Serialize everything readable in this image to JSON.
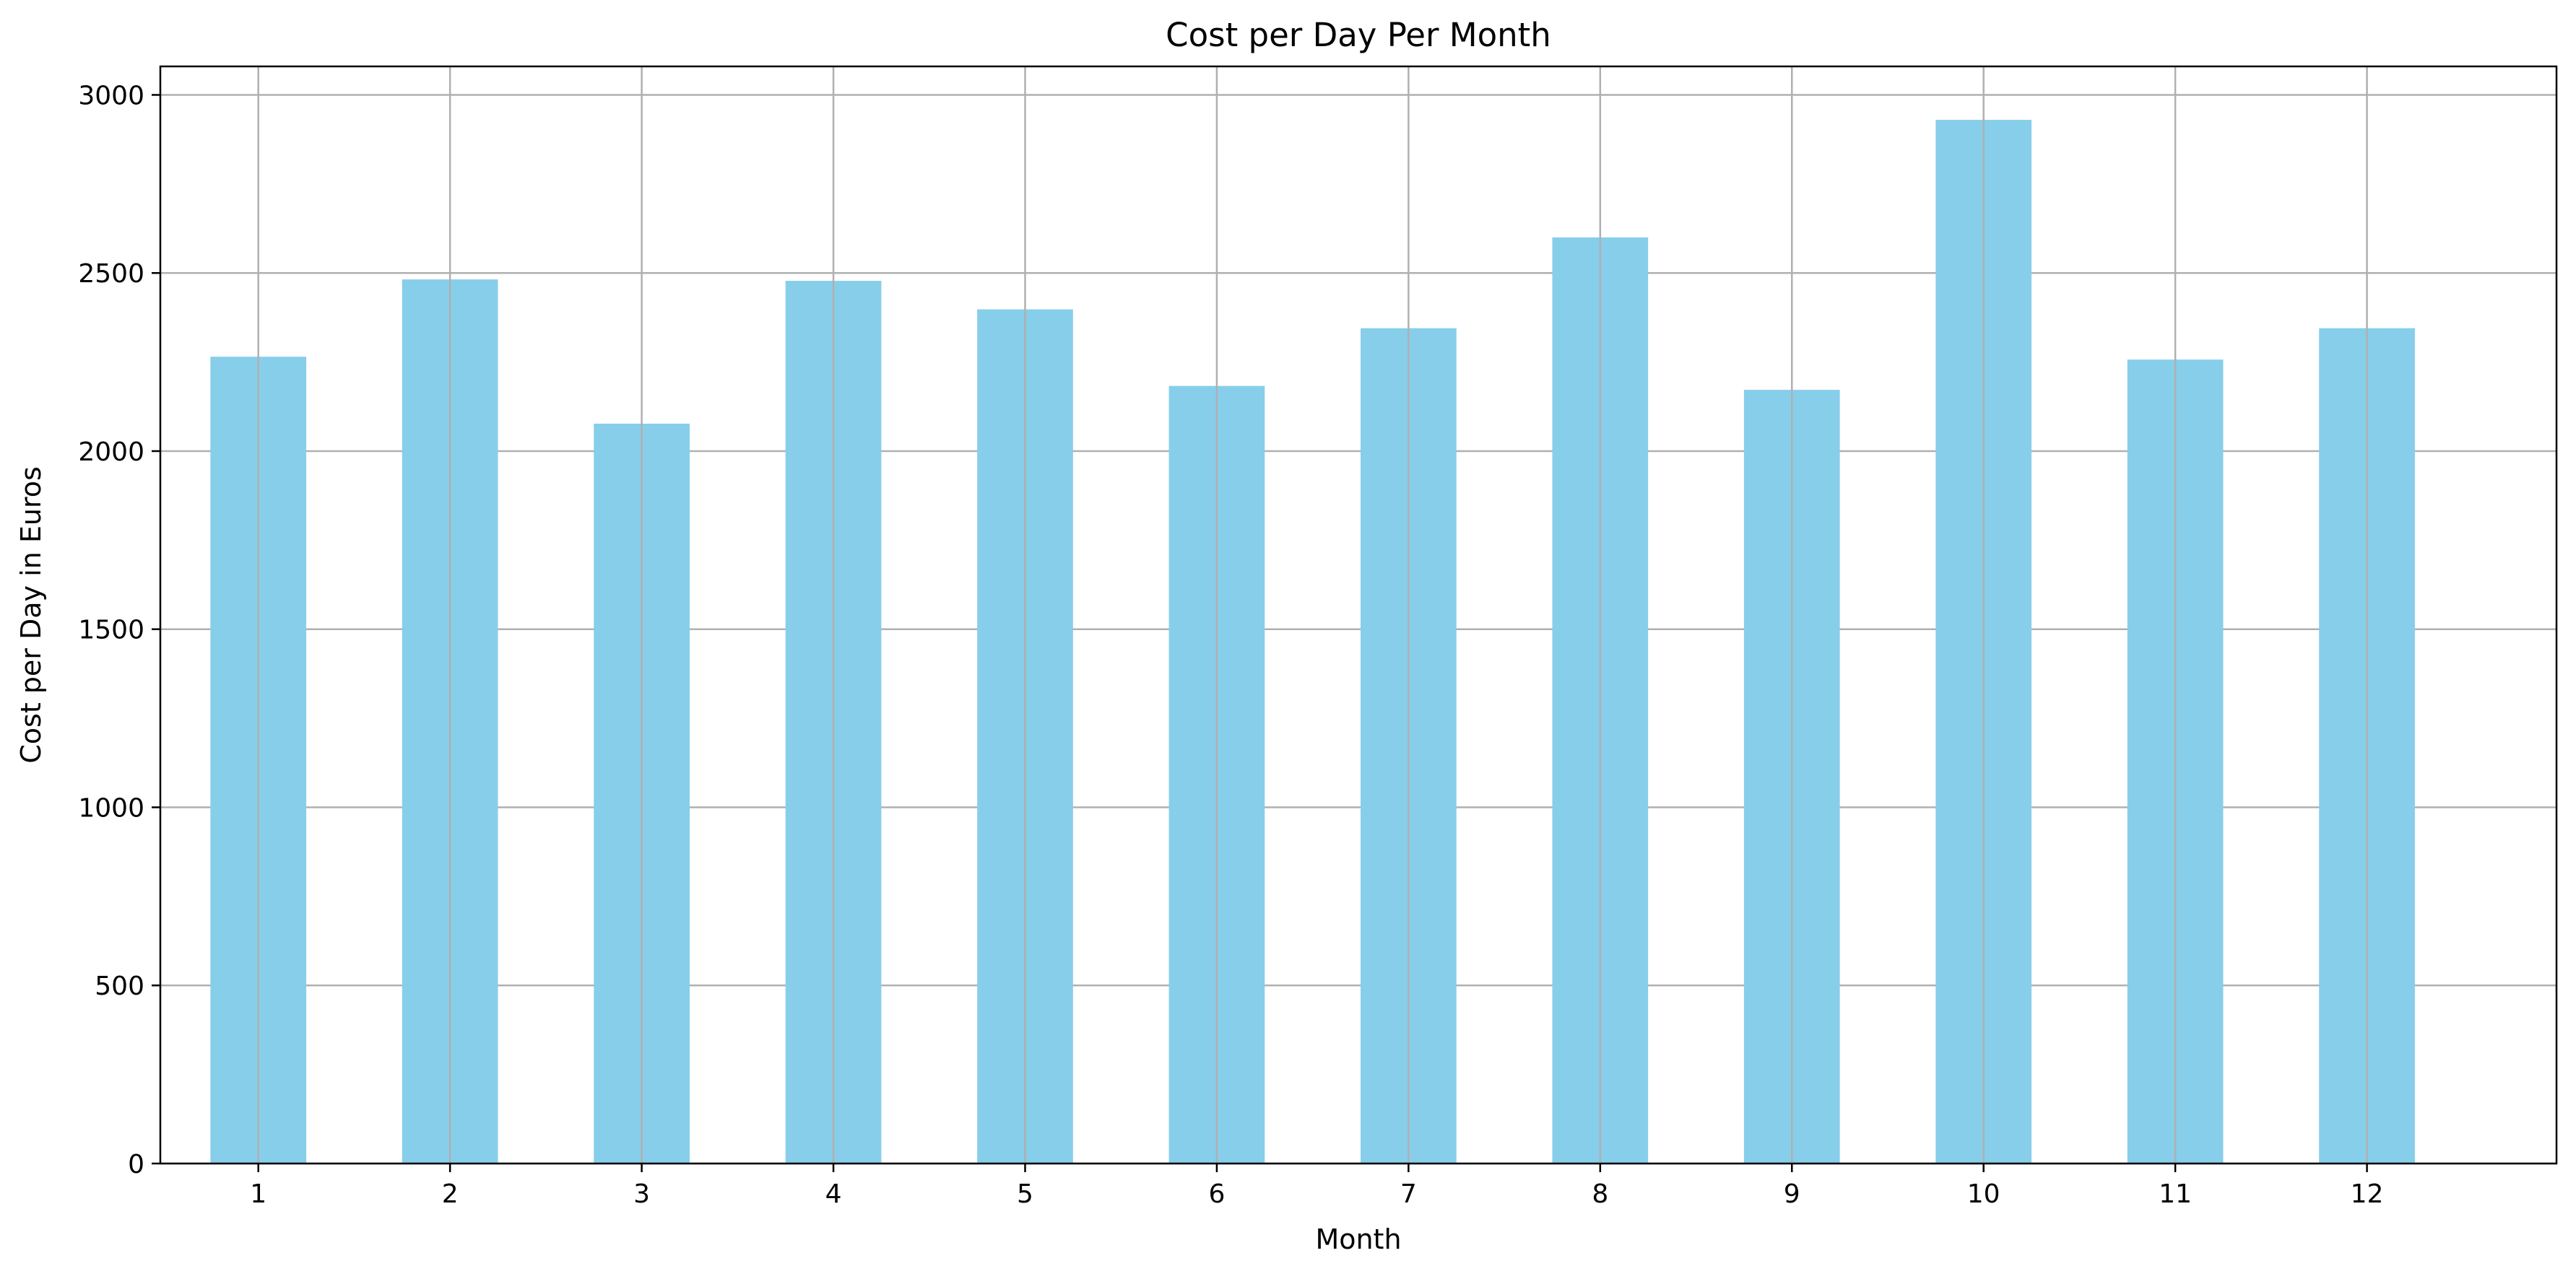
{
  "chart_data": {
    "type": "bar",
    "title": "Cost per Day Per Month",
    "xlabel": "Month",
    "ylabel": "Cost per Day in Euros",
    "categories": [
      "1",
      "2",
      "3",
      "4",
      "5",
      "6",
      "7",
      "8",
      "9",
      "10",
      "11",
      "12"
    ],
    "values": [
      2265,
      2482,
      2077,
      2478,
      2398,
      2183,
      2345,
      2600,
      2172,
      2930,
      2257,
      2345
    ],
    "ylim": [
      0,
      3080
    ],
    "yticks": [
      0,
      500,
      1000,
      1500,
      2000,
      2500,
      3000
    ],
    "grid": true,
    "legend": "none",
    "colors": {
      "bar": "#87ceeb",
      "grid": "#b0b0b0",
      "axis": "#000000"
    }
  }
}
